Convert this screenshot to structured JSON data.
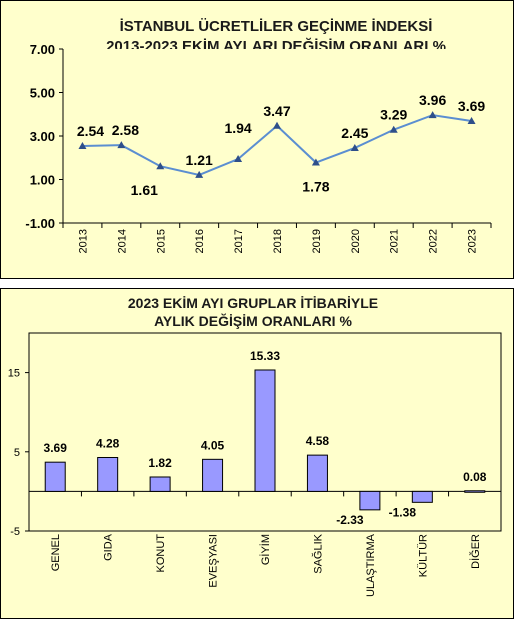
{
  "chart_data": [
    {
      "type": "line",
      "title": [
        "İSTANBUL ÜCRETLİLER GEÇİNME İNDEKSİ",
        "2013-2023 EKİM AYLARI DEĞİŞİM ORANLARI %"
      ],
      "categories": [
        "2013",
        "2014",
        "2015",
        "2016",
        "2017",
        "2018",
        "2019",
        "2020",
        "2021",
        "2022",
        "2023"
      ],
      "series": [
        {
          "values": [
            2.54,
            2.58,
            1.61,
            1.21,
            1.94,
            3.47,
            1.78,
            2.45,
            3.29,
            3.96,
            3.69
          ]
        }
      ],
      "data_labels": [
        "2.54",
        "2.58",
        "1.61",
        "1.21",
        "1.94",
        "3.47",
        "1.78",
        "2.45",
        "3.29",
        "3.96",
        "3.69"
      ],
      "yticks": [
        "7.00",
        "5.00",
        "3.00",
        "1.00",
        "-1.00"
      ],
      "ylim": [
        -1,
        7
      ],
      "grid": false,
      "colors": {
        "line": "#5b8ed1",
        "marker": "#2e4f8a",
        "background": "#ffffcc"
      }
    },
    {
      "type": "bar",
      "title": [
        "2023 EKİM AYI GRUPLAR İTİBARİYLE",
        "AYLIK DEĞİŞİM ORANLARI %"
      ],
      "categories": [
        "GENEL",
        "GIDA",
        "KONUT",
        "EVEŞYASI",
        "GİYİM",
        "SAĞLIK",
        "ULAŞTIRMA",
        "KÜLTÜR",
        "DİĞER"
      ],
      "series": [
        {
          "values": [
            3.69,
            4.28,
            1.82,
            4.05,
            15.33,
            4.58,
            -2.33,
            -1.38,
            0.08
          ]
        }
      ],
      "data_labels": [
        "3.69",
        "4.28",
        "1.82",
        "4.05",
        "15.33",
        "4.58",
        "-2.33",
        "-1.38",
        "0.08"
      ],
      "yticks": [
        "15",
        "5",
        "-5"
      ],
      "ylim": [
        -5,
        20
      ],
      "grid": false,
      "colors": {
        "bar": "#9999ff",
        "plot_area": "#ffffcc"
      }
    }
  ]
}
